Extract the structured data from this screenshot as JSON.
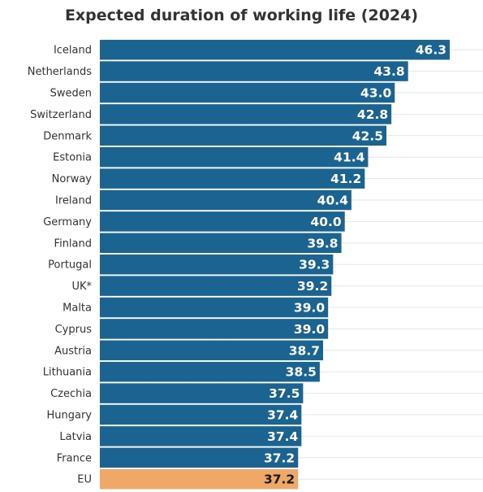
{
  "chart_data": {
    "type": "bar",
    "orientation": "horizontal",
    "title": "Expected duration of working life (2024)",
    "categories": [
      "Iceland",
      "Netherlands",
      "Sweden",
      "Switzerland",
      "Denmark",
      "Estonia",
      "Norway",
      "Ireland",
      "Germany",
      "Finland",
      "Portugal",
      "UK*",
      "Malta",
      "Cyprus",
      "Austria",
      "Lithuania",
      "Czechia",
      "Hungary",
      "Latvia",
      "France",
      "EU"
    ],
    "values": [
      46.3,
      43.8,
      43.0,
      42.8,
      42.5,
      41.4,
      41.2,
      40.4,
      40.0,
      39.8,
      39.3,
      39.2,
      39.0,
      39.0,
      38.7,
      38.5,
      37.5,
      37.4,
      37.4,
      37.2,
      37.2
    ],
    "value_labels": [
      "46.3",
      "43.8",
      "43.0",
      "42.8",
      "42.5",
      "41.4",
      "41.2",
      "40.4",
      "40.0",
      "39.8",
      "39.3",
      "39.2",
      "39.0",
      "39.0",
      "38.7",
      "38.5",
      "37.5",
      "37.4",
      "37.4",
      "37.2",
      "37.2"
    ],
    "highlight_category": "EU",
    "grid": true,
    "colors": {
      "bar": "#1b6491",
      "highlight": "#f0a868"
    }
  }
}
